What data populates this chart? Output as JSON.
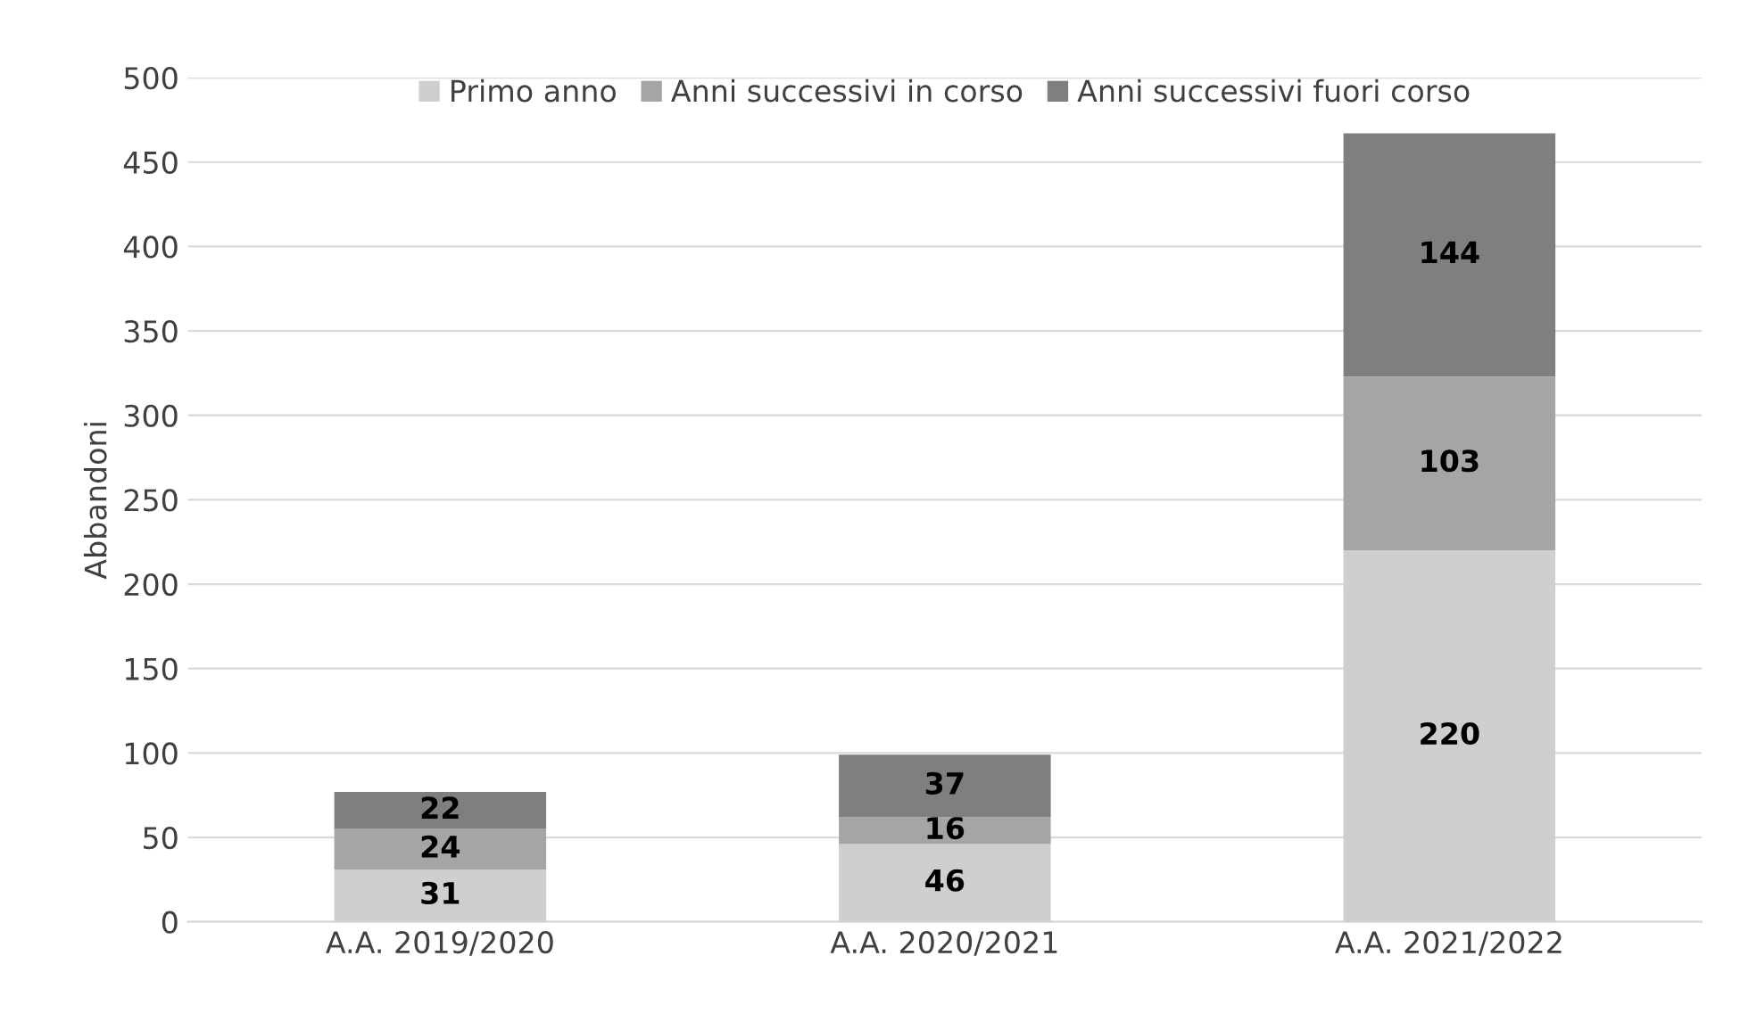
{
  "chart_data": {
    "type": "bar",
    "stacked": true,
    "ylabel": "Abbandoni",
    "categories": [
      "A.A. 2019/2020",
      "A.A. 2020/2021",
      "A.A. 2021/2022"
    ],
    "series": [
      {
        "name": "Primo anno",
        "color": "#cfcfcf",
        "values": [
          31,
          46,
          220
        ]
      },
      {
        "name": "Anni successivi in corso",
        "color": "#a5a5a5",
        "values": [
          24,
          16,
          103
        ]
      },
      {
        "name": "Anni successivi fuori corso",
        "color": "#7f7f7f",
        "values": [
          22,
          37,
          144
        ]
      }
    ],
    "ylim": [
      0,
      500
    ],
    "yticks": [
      0,
      50,
      100,
      150,
      200,
      250,
      300,
      350,
      400,
      450,
      500
    ],
    "grid": "y",
    "legend": "top",
    "data_labels": true
  }
}
